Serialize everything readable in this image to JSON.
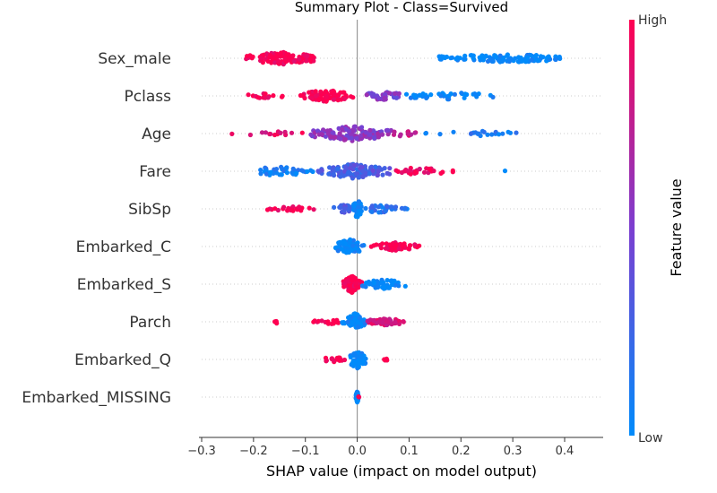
{
  "chart_data": {
    "type": "scatter",
    "title": "Summary Plot - Class=Survived",
    "xlabel": "SHAP value (impact on model output)",
    "xlim": [
      -0.3,
      0.47
    ],
    "xticks": [
      -0.3,
      -0.2,
      -0.1,
      0.0,
      0.1,
      0.2,
      0.3,
      0.4
    ],
    "xtick_labels": [
      "−0.3",
      "−0.2",
      "−0.1",
      "0.0",
      "0.1",
      "0.2",
      "0.3",
      "0.4"
    ],
    "colorbar": {
      "title": "Feature value",
      "high_label": "High",
      "low_label": "Low",
      "low_color": "#008bfb",
      "mid_color": "#7c3ed0",
      "high_color": "#ff0051"
    },
    "features": [
      {
        "name": "Sex_male",
        "clusters": [
          {
            "min": -0.22,
            "max": -0.07,
            "color": 1.0,
            "n": 110,
            "spread": 0.5
          },
          {
            "min": 0.13,
            "max": 0.44,
            "color": 0.0,
            "n": 110,
            "spread": 0.3
          }
        ]
      },
      {
        "name": "Pclass",
        "clusters": [
          {
            "min": -0.22,
            "max": -0.13,
            "color": 1.0,
            "n": 14,
            "spread": 0.15
          },
          {
            "min": -0.12,
            "max": 0.0,
            "color": 1.0,
            "n": 70,
            "spread": 0.5
          },
          {
            "min": 0.0,
            "max": 0.1,
            "color": 0.5,
            "n": 40,
            "spread": 0.3
          },
          {
            "min": 0.07,
            "max": 0.28,
            "color": 0.0,
            "n": 40,
            "spread": 0.25
          }
        ]
      },
      {
        "name": "Age",
        "clusters": [
          {
            "min": -0.27,
            "max": -0.09,
            "color": 0.9,
            "n": 14,
            "spread": 0.15
          },
          {
            "min": -0.1,
            "max": 0.08,
            "color": 0.55,
            "n": 130,
            "spread": 0.6
          },
          {
            "min": 0.06,
            "max": 0.12,
            "color": 0.8,
            "n": 12,
            "spread": 0.2
          },
          {
            "min": 0.12,
            "max": 0.38,
            "color": 0.1,
            "n": 22,
            "spread": 0.15
          }
        ]
      },
      {
        "name": "Fare",
        "clusters": [
          {
            "min": -0.22,
            "max": -0.08,
            "color": 0.05,
            "n": 45,
            "spread": 0.35
          },
          {
            "min": -0.08,
            "max": 0.07,
            "color": 0.3,
            "n": 120,
            "spread": 0.6
          },
          {
            "min": 0.06,
            "max": 0.19,
            "color": 0.95,
            "n": 30,
            "spread": 0.3
          },
          {
            "min": 0.28,
            "max": 0.29,
            "color": 0.0,
            "n": 1,
            "spread": 0.0
          }
        ]
      },
      {
        "name": "SibSp",
        "clusters": [
          {
            "min": -0.18,
            "max": -0.07,
            "color": 1.0,
            "n": 22,
            "spread": 0.15
          },
          {
            "min": -0.05,
            "max": 0.0,
            "color": 0.3,
            "n": 25,
            "spread": 0.3
          },
          {
            "min": -0.01,
            "max": 0.01,
            "color": 0.0,
            "n": 40,
            "spread": 0.8
          },
          {
            "min": 0.0,
            "max": 0.1,
            "color": 0.15,
            "n": 35,
            "spread": 0.3
          }
        ]
      },
      {
        "name": "Embarked_C",
        "clusters": [
          {
            "min": -0.05,
            "max": 0.02,
            "color": 0.0,
            "n": 70,
            "spread": 0.6
          },
          {
            "min": 0.02,
            "max": 0.13,
            "color": 1.0,
            "n": 55,
            "spread": 0.3
          }
        ]
      },
      {
        "name": "Embarked_S",
        "clusters": [
          {
            "min": -0.03,
            "max": 0.01,
            "color": 1.0,
            "n": 110,
            "spread": 0.7
          },
          {
            "min": 0.0,
            "max": 0.1,
            "color": 0.0,
            "n": 50,
            "spread": 0.35
          }
        ]
      },
      {
        "name": "Parch",
        "clusters": [
          {
            "min": -0.16,
            "max": -0.15,
            "color": 1.0,
            "n": 4,
            "spread": 0.1
          },
          {
            "min": -0.09,
            "max": -0.02,
            "color": 1.0,
            "n": 14,
            "spread": 0.15
          },
          {
            "min": -0.03,
            "max": 0.02,
            "color": 0.0,
            "n": 60,
            "spread": 0.7
          },
          {
            "min": 0.01,
            "max": 0.1,
            "color": 0.85,
            "n": 40,
            "spread": 0.25
          }
        ]
      },
      {
        "name": "Embarked_Q",
        "clusters": [
          {
            "min": -0.07,
            "max": -0.02,
            "color": 1.0,
            "n": 16,
            "spread": 0.2
          },
          {
            "min": -0.02,
            "max": 0.02,
            "color": 0.0,
            "n": 70,
            "spread": 0.8
          },
          {
            "min": 0.05,
            "max": 0.06,
            "color": 1.0,
            "n": 4,
            "spread": 0.1
          }
        ]
      },
      {
        "name": "Embarked_MISSING",
        "clusters": [
          {
            "min": -0.003,
            "max": 0.003,
            "color": 0.0,
            "n": 40,
            "spread": 0.45
          },
          {
            "min": 0.002,
            "max": 0.004,
            "color": 1.0,
            "n": 2,
            "spread": 0.1
          }
        ]
      }
    ]
  }
}
